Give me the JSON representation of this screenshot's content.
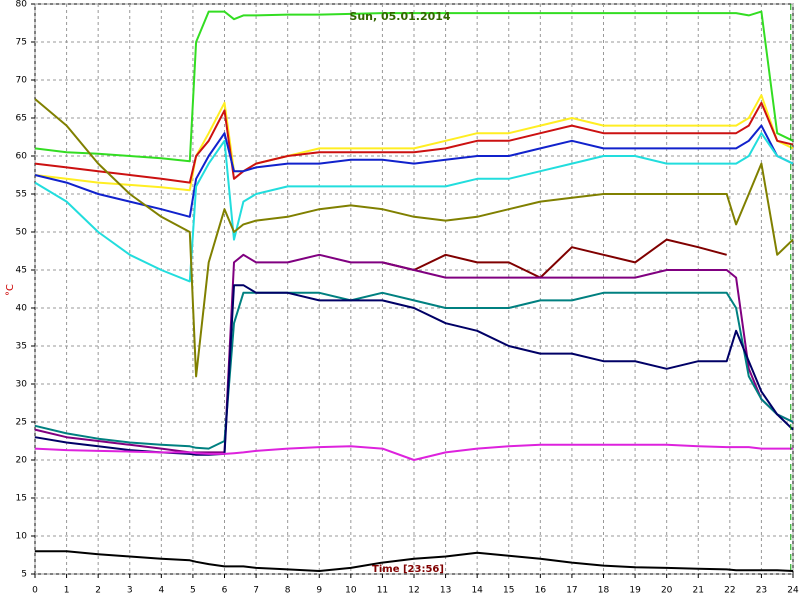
{
  "chart_data": {
    "type": "line",
    "title": "Sun, 05.01.2014",
    "x_label": "Time [23:56]",
    "y_label": "°C",
    "xlim": [
      0,
      24
    ],
    "ylim": [
      5,
      80
    ],
    "xticks": [
      0,
      1,
      2,
      3,
      4,
      5,
      6,
      7,
      8,
      9,
      10,
      11,
      12,
      13,
      14,
      15,
      16,
      17,
      18,
      19,
      20,
      21,
      22,
      23,
      24
    ],
    "yticks": [
      5,
      10,
      15,
      20,
      25,
      30,
      35,
      40,
      45,
      50,
      55,
      60,
      65,
      70,
      75,
      80
    ],
    "grid": true,
    "cursor": {
      "x": 23.93,
      "color": "#00a000"
    },
    "x": [
      0,
      1,
      2,
      3,
      4,
      4.9,
      5.1,
      5.5,
      6,
      6.3,
      6.6,
      7,
      8,
      9,
      10,
      11,
      12,
      13,
      14,
      15,
      16,
      17,
      18,
      19,
      20,
      21,
      21.9,
      22.2,
      22.6,
      23,
      23.5,
      24
    ],
    "series": [
      {
        "color": "#33dd22",
        "values": [
          61,
          60.5,
          60.3,
          60,
          59.7,
          59.3,
          75,
          79,
          79,
          78,
          78.5,
          78.5,
          78.6,
          78.6,
          78.7,
          78.8,
          78.8,
          78.8,
          78.8,
          78.8,
          78.8,
          78.8,
          78.8,
          78.8,
          78.8,
          78.8,
          78.8,
          78.8,
          78.5,
          79,
          63,
          62
        ]
      },
      {
        "color": "#ffee22",
        "values": [
          57.5,
          57,
          56.5,
          56.2,
          55.9,
          55.5,
          60,
          63,
          67,
          58,
          58,
          59,
          60,
          61,
          61,
          61,
          61,
          62,
          63,
          63,
          64,
          65,
          64,
          64,
          64,
          64,
          64,
          64,
          65,
          68,
          62,
          61
        ]
      },
      {
        "color": "#cc1111",
        "values": [
          59,
          58.5,
          58,
          57.5,
          57,
          56.5,
          60,
          62,
          66,
          57,
          58,
          59,
          60,
          60.5,
          60.5,
          60.5,
          60.5,
          61,
          62,
          62,
          63,
          64,
          63,
          63,
          63,
          63,
          63,
          63,
          64,
          67,
          62,
          61.5
        ]
      },
      {
        "color": "#1122cc",
        "values": [
          57.5,
          56.5,
          55,
          54,
          53,
          52,
          57,
          60,
          63,
          58,
          58,
          58.5,
          59,
          59,
          59.5,
          59.5,
          59,
          59.5,
          60,
          60,
          61,
          62,
          61,
          61,
          61,
          61,
          61,
          61,
          62,
          64,
          60,
          59
        ]
      },
      {
        "color": "#22dddd",
        "values": [
          56.5,
          54,
          50,
          47,
          45,
          43.5,
          56,
          59,
          62,
          49,
          54,
          55,
          56,
          56,
          56,
          56,
          56,
          56,
          57,
          57,
          58,
          59,
          60,
          60,
          59,
          59,
          59,
          59,
          60,
          63,
          60,
          59
        ]
      },
      {
        "color": "#808000",
        "values": [
          67.5,
          64,
          59,
          55,
          52,
          50,
          31,
          46,
          53,
          50,
          51,
          51.5,
          52,
          53,
          53.5,
          53,
          52,
          51.5,
          52,
          53,
          54,
          54.5,
          55,
          55,
          55,
          55,
          55,
          51,
          55,
          59,
          47,
          49
        ]
      },
      {
        "color": "#800000",
        "values": [
          null,
          null,
          null,
          null,
          null,
          null,
          null,
          null,
          null,
          null,
          null,
          null,
          null,
          null,
          null,
          46,
          45,
          47,
          46,
          46,
          44,
          48,
          47,
          46,
          49,
          48,
          47,
          null,
          null,
          null,
          null,
          null
        ]
      },
      {
        "color": "#800080",
        "values": [
          24,
          23,
          22.5,
          22,
          21.5,
          21,
          21,
          21,
          21,
          46,
          47,
          46,
          46,
          47,
          46,
          46,
          45,
          44,
          44,
          44,
          44,
          44,
          44,
          44,
          45,
          45,
          45,
          44,
          32,
          28,
          26,
          25
        ]
      },
      {
        "color": "#008080",
        "values": [
          24.5,
          23.5,
          22.8,
          22.3,
          22,
          21.8,
          21.6,
          21.5,
          22.5,
          38,
          42,
          42,
          42,
          42,
          41,
          42,
          41,
          40,
          40,
          40,
          41,
          41,
          42,
          42,
          42,
          42,
          42,
          40,
          31,
          28,
          26,
          25
        ]
      },
      {
        "color": "#000066",
        "values": [
          23,
          22.3,
          21.8,
          21.3,
          21,
          20.8,
          20.7,
          20.7,
          20.8,
          43,
          43,
          42,
          42,
          41,
          41,
          41,
          40,
          38,
          37,
          35,
          34,
          34,
          33,
          33,
          32,
          33,
          33,
          37,
          33,
          29,
          26,
          24
        ]
      },
      {
        "color": "#dd22dd",
        "values": [
          21.5,
          21.3,
          21.2,
          21.1,
          21,
          21,
          20.9,
          20.8,
          20.8,
          20.9,
          21,
          21.2,
          21.5,
          21.7,
          21.8,
          21.5,
          20,
          21,
          21.5,
          21.8,
          22,
          22,
          22,
          22,
          22,
          21.8,
          21.7,
          21.7,
          21.7,
          21.5,
          21.5,
          21.5
        ]
      },
      {
        "color": "#000000",
        "values": [
          8,
          8,
          7.6,
          7.3,
          7,
          6.8,
          6.6,
          6.3,
          6,
          6,
          6,
          5.8,
          5.6,
          5.4,
          5.8,
          6.5,
          7,
          7.3,
          7.8,
          7.4,
          7,
          6.5,
          6.1,
          5.9,
          5.8,
          5.7,
          5.6,
          5.5,
          5.5,
          5.5,
          5.5,
          5.4
        ]
      }
    ]
  }
}
